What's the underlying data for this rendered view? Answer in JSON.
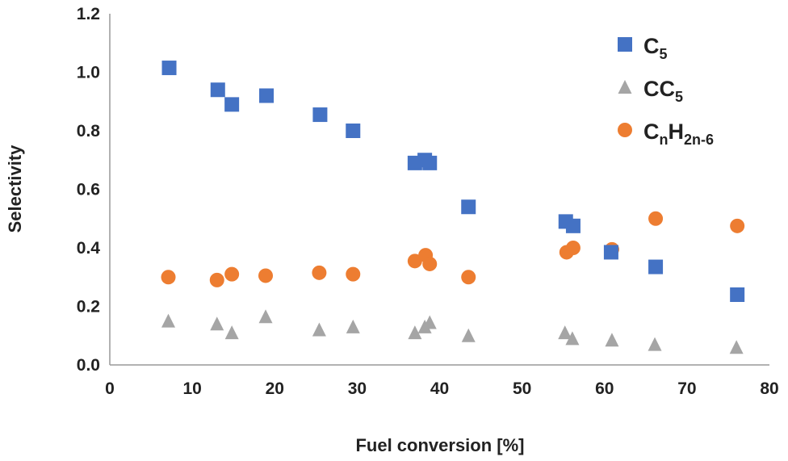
{
  "chart_data": {
    "type": "scatter",
    "xlabel": "Fuel conversion [%]",
    "ylabel": "Selectivity",
    "xlim": [
      0,
      80
    ],
    "ylim": [
      0.0,
      1.2
    ],
    "xticks": [
      "0",
      "10",
      "20",
      "30",
      "40",
      "50",
      "60",
      "70",
      "80"
    ],
    "yticks": [
      "0.0",
      "0.2",
      "0.4",
      "0.6",
      "0.8",
      "1.0",
      "1.2"
    ],
    "grid": false,
    "legend_position": "top-right",
    "series": [
      {
        "name": "C5",
        "legend_main": "C",
        "legend_sub": "5",
        "marker": "square",
        "color": "#4472C4",
        "points": [
          [
            7.2,
            1.015
          ],
          [
            13.1,
            0.94
          ],
          [
            14.8,
            0.89
          ],
          [
            19.0,
            0.92
          ],
          [
            25.5,
            0.855
          ],
          [
            29.5,
            0.8
          ],
          [
            37.0,
            0.69
          ],
          [
            38.2,
            0.7
          ],
          [
            38.8,
            0.69
          ],
          [
            43.5,
            0.54
          ],
          [
            55.3,
            0.49
          ],
          [
            56.2,
            0.475
          ],
          [
            60.8,
            0.385
          ],
          [
            66.2,
            0.335
          ],
          [
            76.1,
            0.24
          ]
        ]
      },
      {
        "name": "CC5",
        "legend_main": "CC",
        "legend_sub": "5",
        "marker": "triangle",
        "color": "#A5A5A5",
        "points": [
          [
            7.1,
            0.15
          ],
          [
            13.0,
            0.14
          ],
          [
            14.8,
            0.11
          ],
          [
            18.9,
            0.165
          ],
          [
            25.4,
            0.12
          ],
          [
            29.5,
            0.13
          ],
          [
            37.0,
            0.11
          ],
          [
            38.2,
            0.13
          ],
          [
            38.8,
            0.145
          ],
          [
            43.5,
            0.1
          ],
          [
            55.2,
            0.11
          ],
          [
            56.1,
            0.09
          ],
          [
            60.9,
            0.085
          ],
          [
            66.1,
            0.07
          ],
          [
            76.0,
            0.06
          ]
        ]
      },
      {
        "name": "CnH2n-6",
        "legend_main": "C",
        "legend_sub": "n",
        "legend_main2": "H",
        "legend_sub2": "2n-6",
        "marker": "circle",
        "color": "#ED7D31",
        "points": [
          [
            7.1,
            0.3
          ],
          [
            13.0,
            0.29
          ],
          [
            14.8,
            0.31
          ],
          [
            18.9,
            0.305
          ],
          [
            25.4,
            0.315
          ],
          [
            29.5,
            0.31
          ],
          [
            37.0,
            0.355
          ],
          [
            38.3,
            0.375
          ],
          [
            38.8,
            0.345
          ],
          [
            43.5,
            0.3
          ],
          [
            55.4,
            0.385
          ],
          [
            56.2,
            0.4
          ],
          [
            60.9,
            0.395
          ],
          [
            66.2,
            0.5
          ],
          [
            76.1,
            0.475
          ]
        ]
      }
    ]
  }
}
